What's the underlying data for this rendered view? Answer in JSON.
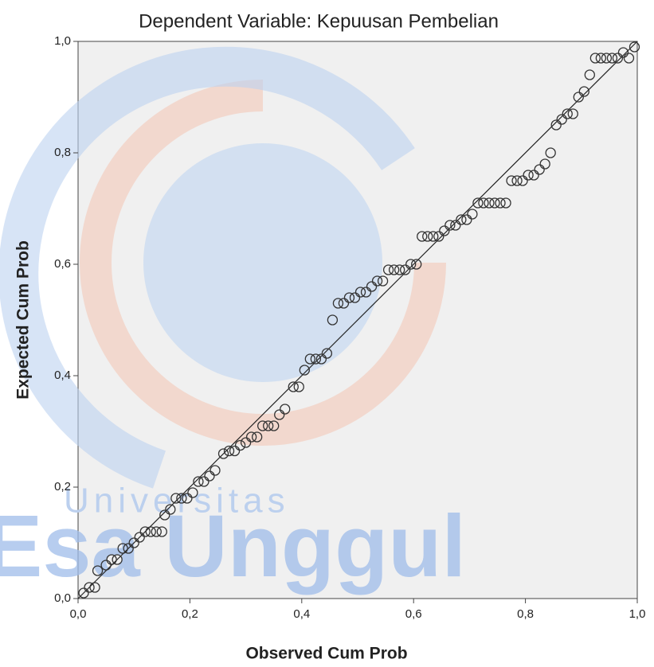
{
  "chart_data": {
    "type": "scatter",
    "title": "Dependent Variable: Kepuusan Pembelian",
    "x_label": "Observed Cum Prob",
    "y_label": "Expected Cum Prob",
    "watermark": [
      "Universitas",
      "Esa Unggul"
    ],
    "xlim": [
      0,
      1
    ],
    "ylim": [
      0,
      1
    ],
    "xticks": [
      {
        "value": 0,
        "label": "0,0"
      },
      {
        "value": 0.2,
        "label": "0,2"
      },
      {
        "value": 0.4,
        "label": "0,4"
      },
      {
        "value": 0.6,
        "label": "0,6"
      },
      {
        "value": 0.8,
        "label": "0,8"
      },
      {
        "value": 1,
        "label": "1,0"
      }
    ],
    "yticks": [
      {
        "value": 0,
        "label": "0,0"
      },
      {
        "value": 0.2,
        "label": "0,2"
      },
      {
        "value": 0.4,
        "label": "0,4"
      },
      {
        "value": 0.6,
        "label": "0,6"
      },
      {
        "value": 0.8,
        "label": "0,8"
      },
      {
        "value": 1,
        "label": "1,0"
      }
    ],
    "color": "#333333",
    "x": [
      0.01,
      0.02,
      0.03,
      0.035,
      0.05,
      0.06,
      0.07,
      0.08,
      0.09,
      0.1,
      0.11,
      0.12,
      0.13,
      0.14,
      0.15,
      0.155,
      0.165,
      0.175,
      0.185,
      0.195,
      0.205,
      0.215,
      0.225,
      0.235,
      0.245,
      0.26,
      0.27,
      0.28,
      0.29,
      0.3,
      0.31,
      0.32,
      0.33,
      0.34,
      0.35,
      0.36,
      0.37,
      0.385,
      0.395,
      0.405,
      0.415,
      0.425,
      0.435,
      0.445,
      0.455,
      0.465,
      0.475,
      0.485,
      0.495,
      0.505,
      0.515,
      0.525,
      0.535,
      0.545,
      0.555,
      0.565,
      0.575,
      0.585,
      0.595,
      0.605,
      0.615,
      0.625,
      0.635,
      0.645,
      0.655,
      0.665,
      0.675,
      0.685,
      0.695,
      0.705,
      0.715,
      0.725,
      0.735,
      0.745,
      0.755,
      0.765,
      0.775,
      0.785,
      0.795,
      0.805,
      0.815,
      0.825,
      0.835,
      0.845,
      0.855,
      0.865,
      0.875,
      0.885,
      0.895,
      0.905,
      0.915,
      0.925,
      0.935,
      0.945,
      0.955,
      0.965,
      0.975,
      0.985,
      0.995
    ],
    "values": [
      0.01,
      0.02,
      0.02,
      0.05,
      0.06,
      0.07,
      0.07,
      0.09,
      0.09,
      0.1,
      0.11,
      0.12,
      0.12,
      0.12,
      0.12,
      0.15,
      0.16,
      0.18,
      0.18,
      0.18,
      0.19,
      0.21,
      0.21,
      0.22,
      0.23,
      0.26,
      0.265,
      0.265,
      0.275,
      0.28,
      0.29,
      0.29,
      0.31,
      0.31,
      0.31,
      0.33,
      0.34,
      0.38,
      0.38,
      0.41,
      0.43,
      0.43,
      0.43,
      0.44,
      0.5,
      0.53,
      0.53,
      0.54,
      0.54,
      0.55,
      0.55,
      0.56,
      0.57,
      0.57,
      0.59,
      0.59,
      0.59,
      0.59,
      0.6,
      0.6,
      0.65,
      0.65,
      0.65,
      0.65,
      0.66,
      0.67,
      0.67,
      0.68,
      0.68,
      0.69,
      0.71,
      0.71,
      0.71,
      0.71,
      0.71,
      0.71,
      0.75,
      0.75,
      0.75,
      0.76,
      0.76,
      0.77,
      0.78,
      0.8,
      0.85,
      0.86,
      0.87,
      0.87,
      0.9,
      0.91,
      0.94,
      0.97,
      0.97,
      0.97,
      0.97,
      0.97,
      0.98,
      0.97,
      0.99
    ]
  }
}
